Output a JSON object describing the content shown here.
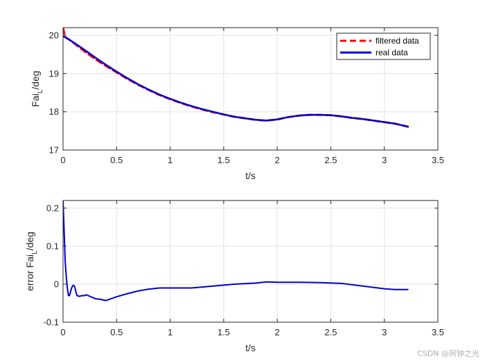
{
  "chart_data": [
    {
      "type": "line",
      "xlabel": "t/s",
      "ylabel": "Fai",
      "ylabel_sub": "L",
      "ylabel_suffix": "/deg",
      "xlim": [
        0,
        3.5
      ],
      "ylim": [
        17,
        20.2
      ],
      "xticks": [
        0,
        0.5,
        1,
        1.5,
        2,
        2.5,
        3,
        3.5
      ],
      "xtick_labels": [
        "0",
        "0.5",
        "1",
        "1.5",
        "2",
        "2.5",
        "3",
        "3.5"
      ],
      "yticks": [
        17,
        18,
        19,
        20
      ],
      "ytick_labels": [
        "17",
        "18",
        "19",
        "20"
      ],
      "grid": true,
      "legend": "top-right",
      "series": [
        {
          "name": "filtered data",
          "color": "#ff0000",
          "style": "dashed",
          "x": [
            0,
            0.02,
            0.05,
            0.1,
            0.2,
            0.3,
            0.4,
            0.5,
            0.6,
            0.7,
            0.8,
            0.9,
            1.0,
            1.1,
            1.2,
            1.3,
            1.4,
            1.5,
            1.6,
            1.7,
            1.8,
            1.9,
            2.0,
            2.1,
            2.2,
            2.3,
            2.4,
            2.5,
            2.6,
            2.7,
            2.8,
            2.9,
            3.0,
            3.1,
            3.22
          ],
          "y": [
            20.2,
            19.95,
            19.9,
            19.8,
            19.58,
            19.38,
            19.2,
            19.03,
            18.86,
            18.71,
            18.57,
            18.44,
            18.33,
            18.23,
            18.14,
            18.06,
            17.99,
            17.93,
            17.87,
            17.83,
            17.79,
            17.77,
            17.8,
            17.86,
            17.9,
            17.92,
            17.92,
            17.91,
            17.88,
            17.84,
            17.81,
            17.77,
            17.73,
            17.69,
            17.61
          ]
        },
        {
          "name": "real data",
          "color": "#0000cc",
          "style": "solid",
          "x": [
            0,
            0.05,
            0.1,
            0.2,
            0.3,
            0.4,
            0.5,
            0.6,
            0.7,
            0.8,
            0.9,
            1.0,
            1.1,
            1.2,
            1.3,
            1.4,
            1.5,
            1.6,
            1.7,
            1.8,
            1.9,
            2.0,
            2.1,
            2.2,
            2.3,
            2.4,
            2.5,
            2.6,
            2.7,
            2.8,
            2.9,
            3.0,
            3.1,
            3.22
          ],
          "y": [
            19.98,
            19.9,
            19.81,
            19.62,
            19.42,
            19.23,
            19.05,
            18.88,
            18.72,
            18.58,
            18.45,
            18.34,
            18.24,
            18.15,
            18.07,
            18.0,
            17.93,
            17.87,
            17.83,
            17.79,
            17.77,
            17.8,
            17.86,
            17.9,
            17.92,
            17.92,
            17.91,
            17.88,
            17.84,
            17.81,
            17.77,
            17.73,
            17.69,
            17.61
          ]
        }
      ]
    },
    {
      "type": "line",
      "xlabel": "t/s",
      "ylabel": "error Fai",
      "ylabel_sub": "L",
      "ylabel_suffix": "/deg",
      "xlim": [
        0,
        3.5
      ],
      "ylim": [
        -0.1,
        0.22
      ],
      "xticks": [
        0,
        0.5,
        1,
        1.5,
        2,
        2.5,
        3,
        3.5
      ],
      "xtick_labels": [
        "0",
        "0.5",
        "1",
        "1.5",
        "2",
        "2.5",
        "3",
        "3.5"
      ],
      "yticks": [
        -0.1,
        0,
        0.1,
        0.2
      ],
      "ytick_labels": [
        "-0.1",
        "0",
        "0.1",
        "0.2"
      ],
      "grid": true,
      "series": [
        {
          "color": "#0000cc",
          "style": "solid",
          "x": [
            0,
            0.005,
            0.01,
            0.015,
            0.02,
            0.03,
            0.04,
            0.05,
            0.06,
            0.07,
            0.08,
            0.09,
            0.1,
            0.11,
            0.12,
            0.13,
            0.15,
            0.18,
            0.2,
            0.22,
            0.25,
            0.3,
            0.35,
            0.4,
            0.45,
            0.5,
            0.6,
            0.7,
            0.8,
            0.9,
            1.0,
            1.2,
            1.4,
            1.6,
            1.8,
            1.9,
            2.0,
            2.2,
            2.4,
            2.6,
            2.8,
            3.0,
            3.1,
            3.22
          ],
          "y": [
            0.22,
            0.18,
            0.14,
            0.1,
            0.06,
            0.02,
            -0.01,
            -0.03,
            -0.03,
            -0.02,
            -0.01,
            -0.004,
            -0.003,
            -0.008,
            -0.02,
            -0.03,
            -0.032,
            -0.03,
            -0.03,
            -0.028,
            -0.032,
            -0.038,
            -0.04,
            -0.043,
            -0.038,
            -0.033,
            -0.025,
            -0.018,
            -0.013,
            -0.01,
            -0.01,
            -0.01,
            -0.005,
            0.0,
            0.003,
            0.006,
            0.005,
            0.005,
            0.004,
            0.002,
            -0.005,
            -0.012,
            -0.014,
            -0.014
          ]
        }
      ]
    }
  ],
  "watermark": "CSDN @阿钟之光"
}
